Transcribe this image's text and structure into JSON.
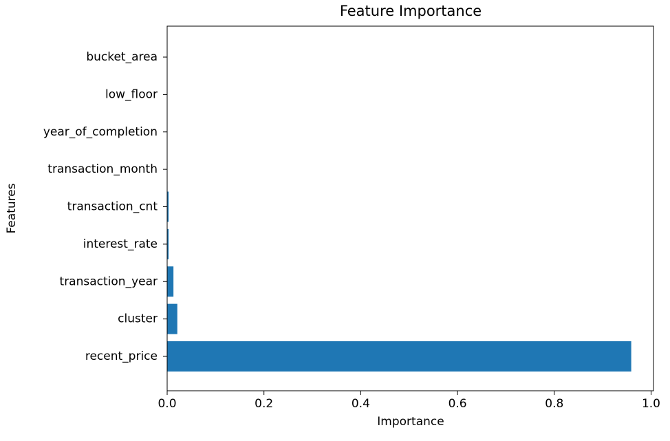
{
  "chart_data": {
    "type": "barh",
    "title": "Feature Importance",
    "x_label": "Importance",
    "y_label": "Features",
    "categories": [
      "recent_price",
      "cluster",
      "transaction_year",
      "interest_rate",
      "transaction_cnt",
      "transaction_month",
      "year_of_completion",
      "low_floor",
      "bucket_area"
    ],
    "values": [
      0.959,
      0.021,
      0.013,
      0.003,
      0.003,
      0.0005,
      0.0002,
      0.0002,
      0.0002
    ],
    "color": "#1f77b4",
    "xlim": [
      0,
      1.005
    ],
    "xticks": [
      {
        "value": 0,
        "label": "0.0"
      },
      0.2,
      0.4,
      0.6,
      0.8,
      {
        "value": 1,
        "label": "1.0"
      }
    ],
    "grid": false
  }
}
